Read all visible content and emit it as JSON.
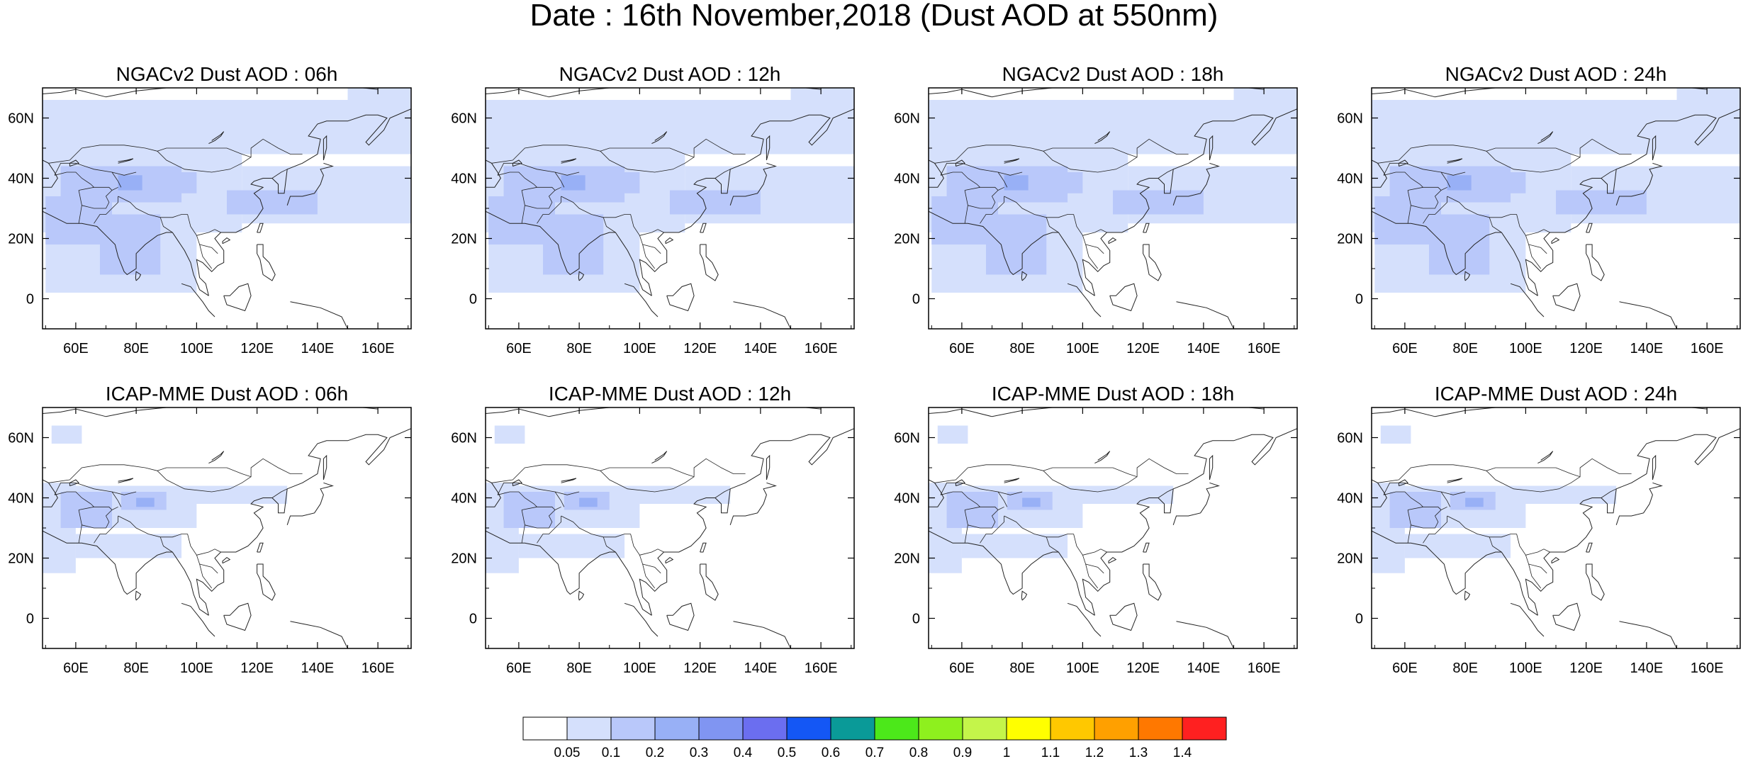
{
  "title": "Date : 16th November,2018 (Dust AOD at 550nm)",
  "map_extent": {
    "lon": [
      49,
      171
    ],
    "lat": [
      -10,
      70
    ]
  },
  "lon_ticks": [
    "60E",
    "80E",
    "100E",
    "120E",
    "140E",
    "160E"
  ],
  "lon_tick_values": [
    60,
    80,
    100,
    120,
    140,
    160
  ],
  "lat_ticks": [
    "0",
    "20N",
    "40N",
    "60N"
  ],
  "lat_tick_values": [
    0,
    20,
    40,
    60
  ],
  "panels": [
    {
      "title": "NGACv2 Dust AOD : 06h",
      "model": "NGACv2",
      "hour": "06h"
    },
    {
      "title": "NGACv2 Dust AOD : 12h",
      "model": "NGACv2",
      "hour": "12h"
    },
    {
      "title": "NGACv2 Dust AOD : 18h",
      "model": "NGACv2",
      "hour": "18h"
    },
    {
      "title": "NGACv2 Dust AOD : 24h",
      "model": "NGACv2",
      "hour": "24h"
    },
    {
      "title": "ICAP-MME Dust AOD : 06h",
      "model": "ICAP-MME",
      "hour": "06h"
    },
    {
      "title": "ICAP-MME Dust AOD : 12h",
      "model": "ICAP-MME",
      "hour": "12h"
    },
    {
      "title": "ICAP-MME Dust AOD : 18h",
      "model": "ICAP-MME",
      "hour": "18h"
    },
    {
      "title": "ICAP-MME Dust AOD : 24h",
      "model": "ICAP-MME",
      "hour": "24h"
    }
  ],
  "colorbar": {
    "labels": [
      "0.05",
      "0.1",
      "0.2",
      "0.3",
      "0.4",
      "0.5",
      "0.6",
      "0.7",
      "0.8",
      "0.9",
      "1",
      "1.1",
      "1.2",
      "1.3",
      "1.4"
    ],
    "colors": [
      "#ffffff",
      "#d5e0fc",
      "#b9c8fa",
      "#98b0f6",
      "#8095f2",
      "#6b6ef0",
      "#1457f5",
      "#0a9a98",
      "#4ce81a",
      "#8ef01e",
      "#c4f54a",
      "#ffff00",
      "#ffc800",
      "#ffa000",
      "#ff7800",
      "#ff2020"
    ]
  }
}
